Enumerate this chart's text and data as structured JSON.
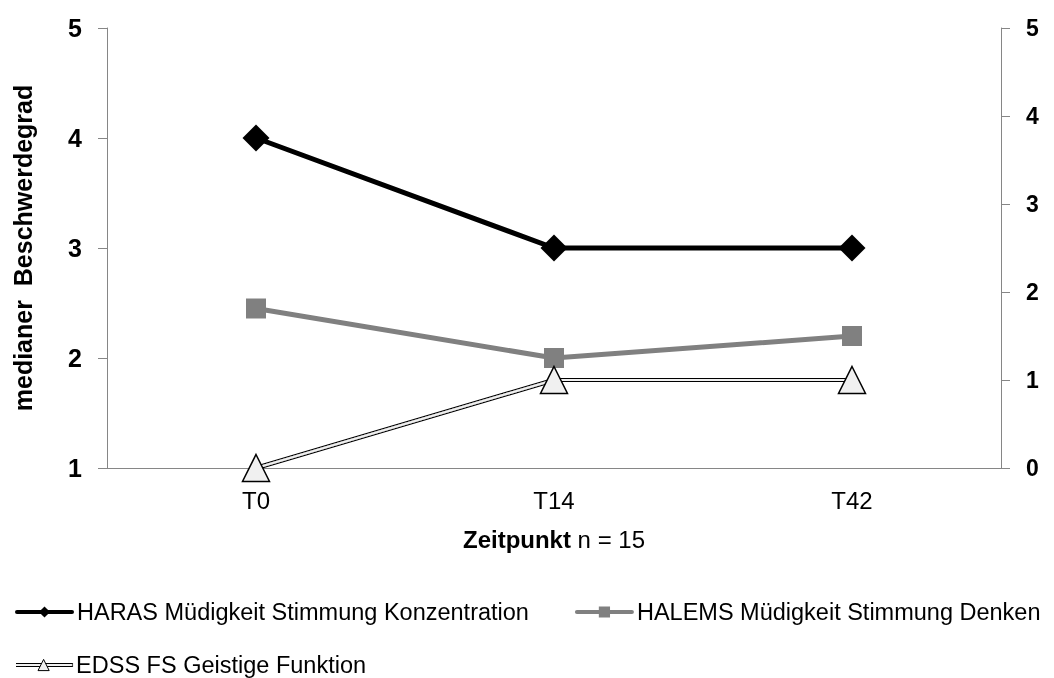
{
  "chart_data": {
    "type": "line",
    "xlabel": "Zeitpunkt n = 15",
    "ylabel": "medianer  Beschwerdegrad",
    "categories": [
      "T0",
      "T14",
      "T42"
    ],
    "series": [
      {
        "name": "HARAS Müdigkeit Stimmung Konzentration",
        "color": "#000000",
        "marker": "diamond",
        "values": [
          4,
          3,
          3
        ]
      },
      {
        "name": "HALEMS Müdigkeit Stimmung Denken",
        "color": "#808080",
        "marker": "square",
        "values": [
          2.45,
          2,
          2.2
        ]
      },
      {
        "name": "EDSS FS Geistige Funktion",
        "color": "#f0f0f0",
        "marker": "triangle",
        "axis": "y2",
        "values": [
          0,
          1,
          1
        ]
      }
    ],
    "ylim": [
      1,
      5
    ],
    "yticks": [
      1,
      2,
      3,
      4,
      5
    ],
    "y2lim": [
      0,
      5
    ],
    "y2ticks": [
      0,
      1,
      2,
      3,
      4,
      5
    ],
    "grid": false,
    "legend": "bottom"
  }
}
